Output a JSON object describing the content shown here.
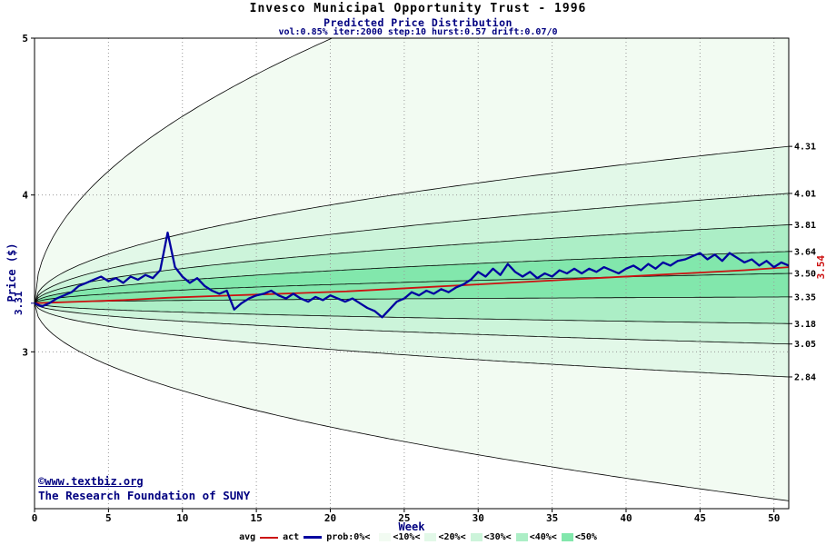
{
  "title": "Invesco Municipal Opportunity Trust - 1996",
  "subtitle": "Predicted Price Distribution",
  "params_line": "vol:0.85% iter:2000 step:10 hurst:0.57 drift:0.07/0",
  "footer": {
    "link": "©www.textbiz.org",
    "org": "The Research Foundation of SUNY"
  },
  "axes": {
    "x_label": "Week",
    "y_label": "Price ($)"
  },
  "legend": {
    "avg_label": "avg",
    "act_label": "act",
    "prob_label": "prob:0%<",
    "band_labels": [
      "<10%<",
      "<20%<",
      "<30%<",
      "<40%<",
      "<50%"
    ]
  },
  "chart_data": {
    "type": "area",
    "title": "Invesco Municipal Opportunity Trust - 1996 / Predicted Price Distribution",
    "xlabel": "Week",
    "ylabel": "Price ($)",
    "x_range": [
      0,
      51
    ],
    "y_range": [
      2,
      5
    ],
    "x_ticks": [
      0,
      5,
      10,
      15,
      20,
      25,
      30,
      35,
      40,
      45,
      50
    ],
    "y_ticks": [
      3,
      4,
      5
    ],
    "right_labels": [
      "4.31",
      "4.01",
      "3.81",
      "3.64",
      "3.50",
      "3.35",
      "3.18",
      "3.05",
      "2.84"
    ],
    "start_price": 3.31,
    "start_label": "3.31",
    "avg_end_label": "3.54",
    "growth": "sqrt",
    "bands": {
      "percentiles": [
        0,
        10,
        20,
        30,
        40
      ],
      "upper_end": [
        6.0,
        4.31,
        4.01,
        3.81,
        3.64
      ],
      "lower_end": [
        2.05,
        2.84,
        3.05,
        3.18,
        3.35
      ],
      "median_end": 3.5,
      "colors": [
        "#f2fbf2",
        "#e2f8e8",
        "#ccf4da",
        "#aceec6",
        "#82e7ac"
      ]
    },
    "colors": {
      "avg": "#cc1111",
      "act": "#0000a0",
      "boundary": "#000000",
      "grid": "#9a9a9a",
      "accent_navy": "#000080"
    },
    "avg_series": {
      "name": "avg",
      "points": [
        [
          0,
          3.31
        ],
        [
          3,
          3.32
        ],
        [
          6,
          3.33
        ],
        [
          9,
          3.345
        ],
        [
          12,
          3.355
        ],
        [
          15,
          3.365
        ],
        [
          18,
          3.375
        ],
        [
          21,
          3.385
        ],
        [
          24,
          3.4
        ],
        [
          27,
          3.415
        ],
        [
          30,
          3.43
        ],
        [
          33,
          3.445
        ],
        [
          36,
          3.46
        ],
        [
          39,
          3.475
        ],
        [
          42,
          3.49
        ],
        [
          45,
          3.505
        ],
        [
          48,
          3.52
        ],
        [
          51,
          3.54
        ]
      ]
    },
    "act_series": {
      "name": "act",
      "points": [
        [
          0,
          3.31
        ],
        [
          0.5,
          3.29
        ],
        [
          1,
          3.31
        ],
        [
          1.5,
          3.34
        ],
        [
          2,
          3.36
        ],
        [
          2.5,
          3.38
        ],
        [
          3,
          3.42
        ],
        [
          3.5,
          3.44
        ],
        [
          4,
          3.46
        ],
        [
          4.5,
          3.48
        ],
        [
          5,
          3.45
        ],
        [
          5.5,
          3.47
        ],
        [
          6,
          3.44
        ],
        [
          6.5,
          3.48
        ],
        [
          7,
          3.46
        ],
        [
          7.5,
          3.49
        ],
        [
          8,
          3.47
        ],
        [
          8.5,
          3.52
        ],
        [
          9,
          3.76
        ],
        [
          9.5,
          3.54
        ],
        [
          10,
          3.48
        ],
        [
          10.5,
          3.44
        ],
        [
          11,
          3.47
        ],
        [
          11.5,
          3.42
        ],
        [
          12,
          3.39
        ],
        [
          12.5,
          3.37
        ],
        [
          13,
          3.39
        ],
        [
          13.5,
          3.27
        ],
        [
          14,
          3.31
        ],
        [
          14.5,
          3.34
        ],
        [
          15,
          3.36
        ],
        [
          15.5,
          3.37
        ],
        [
          16,
          3.39
        ],
        [
          16.5,
          3.36
        ],
        [
          17,
          3.34
        ],
        [
          17.5,
          3.37
        ],
        [
          18,
          3.34
        ],
        [
          18.5,
          3.32
        ],
        [
          19,
          3.35
        ],
        [
          19.5,
          3.33
        ],
        [
          20,
          3.36
        ],
        [
          20.5,
          3.34
        ],
        [
          21,
          3.32
        ],
        [
          21.5,
          3.34
        ],
        [
          22,
          3.31
        ],
        [
          22.5,
          3.28
        ],
        [
          23,
          3.26
        ],
        [
          23.5,
          3.22
        ],
        [
          24,
          3.27
        ],
        [
          24.5,
          3.32
        ],
        [
          25,
          3.34
        ],
        [
          25.5,
          3.38
        ],
        [
          26,
          3.36
        ],
        [
          26.5,
          3.39
        ],
        [
          27,
          3.37
        ],
        [
          27.5,
          3.4
        ],
        [
          28,
          3.38
        ],
        [
          28.5,
          3.41
        ],
        [
          29,
          3.43
        ],
        [
          29.5,
          3.46
        ],
        [
          30,
          3.51
        ],
        [
          30.5,
          3.48
        ],
        [
          31,
          3.53
        ],
        [
          31.5,
          3.49
        ],
        [
          32,
          3.56
        ],
        [
          32.5,
          3.51
        ],
        [
          33,
          3.48
        ],
        [
          33.5,
          3.51
        ],
        [
          34,
          3.47
        ],
        [
          34.5,
          3.5
        ],
        [
          35,
          3.48
        ],
        [
          35.5,
          3.52
        ],
        [
          36,
          3.5
        ],
        [
          36.5,
          3.53
        ],
        [
          37,
          3.5
        ],
        [
          37.5,
          3.53
        ],
        [
          38,
          3.51
        ],
        [
          38.5,
          3.54
        ],
        [
          39,
          3.52
        ],
        [
          39.5,
          3.5
        ],
        [
          40,
          3.53
        ],
        [
          40.5,
          3.55
        ],
        [
          41,
          3.52
        ],
        [
          41.5,
          3.56
        ],
        [
          42,
          3.53
        ],
        [
          42.5,
          3.57
        ],
        [
          43,
          3.55
        ],
        [
          43.5,
          3.58
        ],
        [
          44,
          3.59
        ],
        [
          44.5,
          3.61
        ],
        [
          45,
          3.63
        ],
        [
          45.5,
          3.59
        ],
        [
          46,
          3.62
        ],
        [
          46.5,
          3.58
        ],
        [
          47,
          3.63
        ],
        [
          47.5,
          3.6
        ],
        [
          48,
          3.57
        ],
        [
          48.5,
          3.59
        ],
        [
          49,
          3.55
        ],
        [
          49.5,
          3.58
        ],
        [
          50,
          3.54
        ],
        [
          50.5,
          3.57
        ],
        [
          51,
          3.55
        ]
      ]
    }
  }
}
